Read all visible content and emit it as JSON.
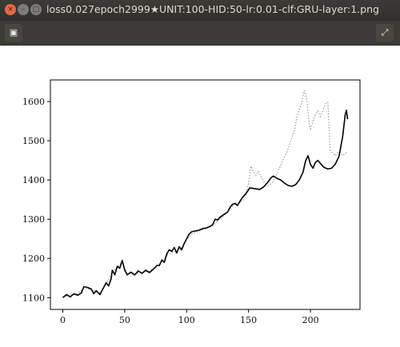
{
  "window": {
    "title": "loss0.027epoch2999★UNIT:100-HID:50-lr:0.01-clf:GRU-layer:1.png",
    "close_glyph": "×",
    "min_glyph": "–",
    "max_glyph": "□"
  },
  "toolbar": {
    "left_icon": "▣",
    "right_icon": "⤢"
  },
  "chart_data": {
    "type": "line",
    "title": "",
    "xlabel": "",
    "ylabel": "",
    "xlim": [
      -10,
      240
    ],
    "ylim": [
      1070,
      1655
    ],
    "xticks": [
      0,
      50,
      100,
      150,
      200
    ],
    "yticks": [
      1100,
      1200,
      1300,
      1400,
      1500,
      1600
    ],
    "grid": false,
    "series": [
      {
        "style": "solid",
        "color": "#000000",
        "points": [
          [
            0,
            1100
          ],
          [
            3,
            1108
          ],
          [
            6,
            1102
          ],
          [
            9,
            1110
          ],
          [
            12,
            1106
          ],
          [
            15,
            1112
          ],
          [
            17,
            1128
          ],
          [
            20,
            1126
          ],
          [
            23,
            1122
          ],
          [
            25,
            1110
          ],
          [
            27,
            1118
          ],
          [
            30,
            1108
          ],
          [
            33,
            1126
          ],
          [
            35,
            1138
          ],
          [
            37,
            1130
          ],
          [
            39,
            1148
          ],
          [
            40,
            1170
          ],
          [
            42,
            1158
          ],
          [
            44,
            1180
          ],
          [
            46,
            1175
          ],
          [
            48,
            1195
          ],
          [
            50,
            1170
          ],
          [
            52,
            1158
          ],
          [
            55,
            1165
          ],
          [
            58,
            1158
          ],
          [
            61,
            1168
          ],
          [
            64,
            1162
          ],
          [
            67,
            1170
          ],
          [
            70,
            1164
          ],
          [
            73,
            1172
          ],
          [
            76,
            1182
          ],
          [
            78,
            1182
          ],
          [
            80,
            1196
          ],
          [
            82,
            1190
          ],
          [
            84,
            1212
          ],
          [
            86,
            1222
          ],
          [
            88,
            1218
          ],
          [
            90,
            1228
          ],
          [
            92,
            1214
          ],
          [
            94,
            1230
          ],
          [
            96,
            1222
          ],
          [
            98,
            1238
          ],
          [
            100,
            1250
          ],
          [
            102,
            1262
          ],
          [
            104,
            1268
          ],
          [
            107,
            1270
          ],
          [
            110,
            1272
          ],
          [
            113,
            1276
          ],
          [
            116,
            1278
          ],
          [
            119,
            1282
          ],
          [
            121,
            1286
          ],
          [
            123,
            1300
          ],
          [
            125,
            1298
          ],
          [
            127,
            1305
          ],
          [
            130,
            1312
          ],
          [
            133,
            1318
          ],
          [
            135,
            1330
          ],
          [
            137,
            1338
          ],
          [
            139,
            1340
          ],
          [
            141,
            1335
          ],
          [
            143,
            1345
          ],
          [
            145,
            1355
          ],
          [
            147,
            1362
          ],
          [
            149,
            1370
          ],
          [
            151,
            1380
          ],
          [
            155,
            1378
          ],
          [
            159,
            1376
          ],
          [
            162,
            1382
          ],
          [
            165,
            1392
          ],
          [
            168,
            1405
          ],
          [
            170,
            1410
          ],
          [
            173,
            1404
          ],
          [
            176,
            1400
          ],
          [
            179,
            1392
          ],
          [
            182,
            1386
          ],
          [
            185,
            1384
          ],
          [
            188,
            1388
          ],
          [
            191,
            1400
          ],
          [
            194,
            1420
          ],
          [
            196,
            1448
          ],
          [
            198,
            1462
          ],
          [
            200,
            1440
          ],
          [
            202,
            1430
          ],
          [
            204,
            1445
          ],
          [
            206,
            1450
          ],
          [
            208,
            1442
          ],
          [
            211,
            1432
          ],
          [
            214,
            1428
          ],
          [
            217,
            1430
          ],
          [
            220,
            1440
          ],
          [
            223,
            1460
          ],
          [
            226,
            1510
          ],
          [
            228,
            1565
          ],
          [
            229,
            1578
          ],
          [
            230,
            1555
          ]
        ]
      },
      {
        "style": "dotted",
        "color": "#9a9a9a",
        "points": [
          [
            0,
            1102
          ],
          [
            6,
            1106
          ],
          [
            12,
            1110
          ],
          [
            17,
            1124
          ],
          [
            23,
            1120
          ],
          [
            30,
            1112
          ],
          [
            35,
            1135
          ],
          [
            40,
            1165
          ],
          [
            44,
            1178
          ],
          [
            48,
            1190
          ],
          [
            52,
            1162
          ],
          [
            58,
            1160
          ],
          [
            64,
            1165
          ],
          [
            70,
            1168
          ],
          [
            76,
            1180
          ],
          [
            80,
            1192
          ],
          [
            84,
            1208
          ],
          [
            88,
            1216
          ],
          [
            92,
            1218
          ],
          [
            96,
            1226
          ],
          [
            100,
            1248
          ],
          [
            104,
            1262
          ],
          [
            110,
            1270
          ],
          [
            116,
            1276
          ],
          [
            121,
            1282
          ],
          [
            125,
            1296
          ],
          [
            130,
            1308
          ],
          [
            135,
            1325
          ],
          [
            139,
            1342
          ],
          [
            143,
            1342
          ],
          [
            147,
            1352
          ],
          [
            150,
            1392
          ],
          [
            152,
            1435
          ],
          [
            154,
            1420
          ],
          [
            156,
            1412
          ],
          [
            158,
            1422
          ],
          [
            160,
            1408
          ],
          [
            163,
            1392
          ],
          [
            166,
            1386
          ],
          [
            169,
            1392
          ],
          [
            172,
            1410
          ],
          [
            175,
            1430
          ],
          [
            178,
            1452
          ],
          [
            181,
            1472
          ],
          [
            184,
            1500
          ],
          [
            187,
            1525
          ],
          [
            189,
            1562
          ],
          [
            191,
            1580
          ],
          [
            193,
            1598
          ],
          [
            195,
            1628
          ],
          [
            197,
            1606
          ],
          [
            199,
            1544
          ],
          [
            200,
            1530
          ],
          [
            202,
            1550
          ],
          [
            204,
            1568
          ],
          [
            206,
            1576
          ],
          [
            208,
            1562
          ],
          [
            210,
            1578
          ],
          [
            212,
            1594
          ],
          [
            214,
            1598
          ],
          [
            216,
            1475
          ],
          [
            218,
            1468
          ],
          [
            220,
            1462
          ],
          [
            222,
            1470
          ],
          [
            224,
            1470
          ],
          [
            226,
            1462
          ],
          [
            228,
            1468
          ],
          [
            230,
            1472
          ]
        ]
      }
    ]
  }
}
